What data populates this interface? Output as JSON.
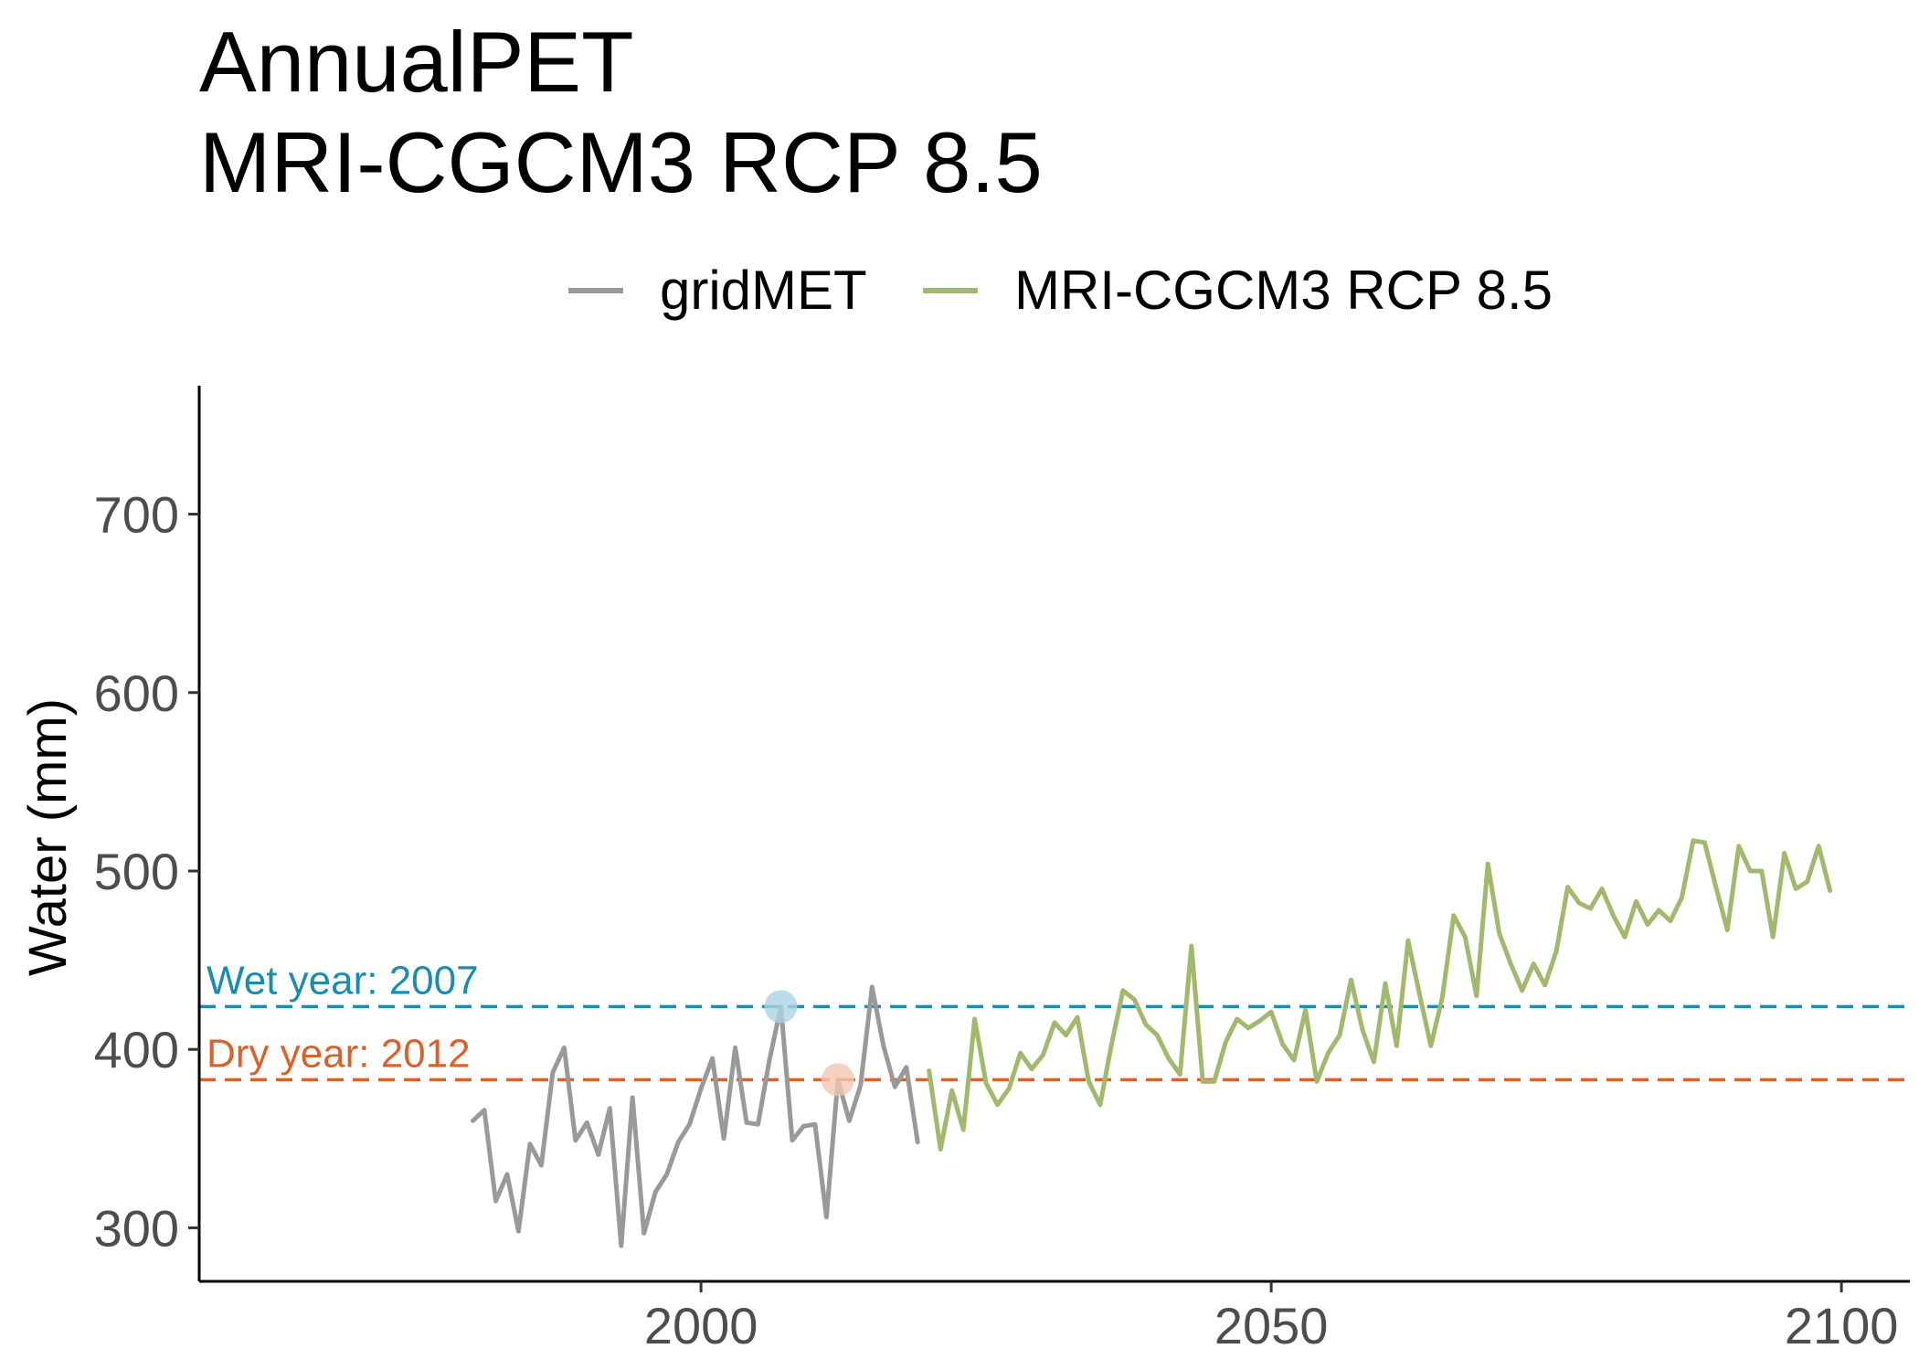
{
  "chart_data": {
    "type": "line",
    "title": [
      "AnnualPET",
      "MRI-CGCM3 RCP 8.5"
    ],
    "xlabel": "",
    "ylabel": "Water (mm)",
    "xlim": [
      1956,
      2106
    ],
    "ylim": [
      270,
      772
    ],
    "x_ticks": [
      2000,
      2050,
      2100
    ],
    "y_ticks": [
      300,
      400,
      500,
      600,
      700
    ],
    "grid": false,
    "legend_position": "top",
    "series": [
      {
        "name": "gridMET",
        "color": "#999999",
        "x": [
          1980,
          1981,
          1982,
          1983,
          1984,
          1985,
          1986,
          1987,
          1988,
          1989,
          1990,
          1991,
          1992,
          1993,
          1994,
          1995,
          1996,
          1997,
          1998,
          1999,
          2000,
          2001,
          2002,
          2003,
          2004,
          2005,
          2006,
          2007,
          2008,
          2009,
          2010,
          2011,
          2012,
          2013,
          2014,
          2015,
          2016,
          2017,
          2018,
          2019
        ],
        "y": [
          360,
          366,
          315,
          330,
          298,
          347,
          335,
          387,
          401,
          349,
          359,
          341,
          367,
          290,
          373,
          297,
          320,
          330,
          348,
          358,
          378,
          395,
          350,
          401,
          359,
          358,
          394,
          424,
          349,
          357,
          358,
          306,
          383,
          360,
          380,
          435,
          402,
          379,
          390,
          348
        ]
      },
      {
        "name": "MRI-CGCM3 RCP 8.5",
        "color": "#a2b86c",
        "x": [
          2020,
          2021,
          2022,
          2023,
          2024,
          2025,
          2026,
          2027,
          2028,
          2029,
          2030,
          2031,
          2032,
          2033,
          2034,
          2035,
          2036,
          2037,
          2038,
          2039,
          2040,
          2041,
          2042,
          2043,
          2044,
          2045,
          2046,
          2047,
          2048,
          2049,
          2050,
          2051,
          2052,
          2053,
          2054,
          2055,
          2056,
          2057,
          2058,
          2059,
          2060,
          2061,
          2062,
          2063,
          2064,
          2065,
          2066,
          2067,
          2068,
          2069,
          2070,
          2071,
          2072,
          2073,
          2074,
          2075,
          2076,
          2077,
          2078,
          2079,
          2080,
          2081,
          2082,
          2083,
          2084,
          2085,
          2086,
          2087,
          2088,
          2089,
          2090,
          2091,
          2092,
          2093,
          2094,
          2095,
          2096,
          2097,
          2098,
          2099
        ],
        "y": [
          388,
          344,
          377,
          355,
          417,
          381,
          369,
          378,
          398,
          389,
          397,
          415,
          408,
          418,
          382,
          369,
          403,
          433,
          428,
          414,
          408,
          395,
          386,
          458,
          382,
          382,
          404,
          417,
          412,
          416,
          421,
          403,
          394,
          422,
          382,
          398,
          408,
          439,
          411,
          393,
          437,
          402,
          461,
          431,
          402,
          429,
          475,
          463,
          430,
          504,
          465,
          448,
          433,
          448,
          436,
          455,
          491,
          482,
          479,
          490,
          475,
          463,
          483,
          470,
          478,
          472,
          485,
          517,
          516,
          491,
          467,
          514,
          500,
          500,
          463,
          510,
          490,
          494,
          514,
          489
        ]
      }
    ],
    "reference_lines": [
      {
        "label": "Wet year: 2007",
        "value": 424,
        "year": 2007,
        "color": "#1a8cae",
        "point_color": "#a9d4e3"
      },
      {
        "label": "Dry year: 2012",
        "value": 383,
        "year": 2012,
        "color": "#d9622b",
        "point_color": "#f5c5b0"
      }
    ]
  }
}
